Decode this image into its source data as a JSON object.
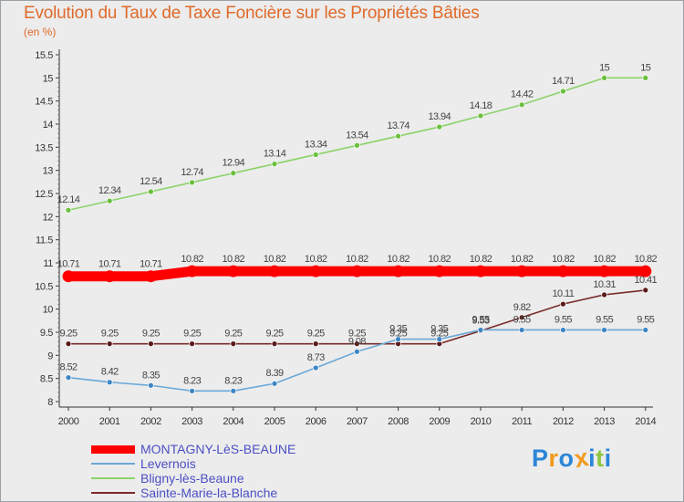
{
  "title": "Evolution du Taux de Taxe Foncière sur les Propriétés Bâties",
  "unit_label": "(en %)",
  "logo": {
    "letters": [
      "P",
      "r",
      "o",
      "x",
      "i",
      "t",
      "i"
    ],
    "colors": [
      "#2b86d9",
      "#f29a1e",
      "#2b86d9",
      "#f29a1e",
      "#2b86d9",
      "#8cc63f",
      "#2b86d9"
    ]
  },
  "chart_data": {
    "type": "line",
    "title": "Evolution du Taux de Taxe Foncière sur les Propriétés Bâties",
    "ylabel": "(en %)",
    "xlabel": "",
    "ylim": [
      8,
      15.5
    ],
    "yticks": [
      "8",
      "8.5",
      "9",
      "9.5",
      "10",
      "10.5",
      "11",
      "11.5",
      "12",
      "12.5",
      "13",
      "13.5",
      "14",
      "14.5",
      "15",
      "15.5"
    ],
    "categories": [
      "2000",
      "2001",
      "2002",
      "2003",
      "2004",
      "2005",
      "2006",
      "2007",
      "2008",
      "2009",
      "2010",
      "2011",
      "2012",
      "2013",
      "2014"
    ],
    "grid": false,
    "series": [
      {
        "name": "Bligny-lès-Beaune",
        "color": "#8cd26a",
        "marker": "#6abf3c",
        "values": [
          12.14,
          12.34,
          12.54,
          12.74,
          12.94,
          13.14,
          13.34,
          13.54,
          13.74,
          13.94,
          14.18,
          14.42,
          14.71,
          15,
          15
        ],
        "labels": [
          "12.14",
          "12.34",
          "12.54",
          "12.74",
          "12.94",
          "13.14",
          "13.34",
          "13.54",
          "13.74",
          "13.94",
          "14.18",
          "14.42",
          "14.71",
          "15",
          "15"
        ]
      },
      {
        "name": "MONTAGNY-LèS-BEAUNE",
        "color": "#ff0000",
        "marker": "#ff0000",
        "values": [
          10.71,
          10.71,
          10.71,
          10.82,
          10.82,
          10.82,
          10.82,
          10.82,
          10.82,
          10.82,
          10.82,
          10.82,
          10.82,
          10.82,
          10.82
        ],
        "labels": [
          "10.71",
          "10.71",
          "10.71",
          "10.82",
          "10.82",
          "10.82",
          "10.82",
          "10.82",
          "10.82",
          "10.82",
          "10.82",
          "10.82",
          "10.82",
          "10.82",
          "10.82"
        ]
      },
      {
        "name": "Sainte-Marie-la-Blanche",
        "color": "#7a2b2b",
        "marker": "#5a1a1a",
        "values": [
          9.25,
          9.25,
          9.25,
          9.25,
          9.25,
          9.25,
          9.25,
          9.25,
          9.25,
          9.25,
          9.53,
          9.82,
          10.11,
          10.31,
          10.41
        ],
        "labels": [
          "9.25",
          "9.25",
          "9.25",
          "9.25",
          "9.25",
          "9.25",
          "9.25",
          "9.25",
          "9.25",
          "9.25",
          "9.53",
          "9.82",
          "10.11",
          "10.31",
          "10.41"
        ]
      },
      {
        "name": "Levernois",
        "color": "#6aa8d8",
        "marker": "#3d86c6",
        "values": [
          8.52,
          8.42,
          8.35,
          8.23,
          8.23,
          8.39,
          8.73,
          9.08,
          9.35,
          9.35,
          9.55,
          9.55,
          9.55,
          9.55,
          9.55
        ],
        "labels": [
          "8.52",
          "8.42",
          "8.35",
          "8.23",
          "8.23",
          "8.39",
          "8.73",
          "9.08",
          "9.35",
          "9.35",
          "9.55",
          "9.55",
          "9.55",
          "9.55",
          "9.55"
        ]
      }
    ],
    "legend": [
      {
        "name": "MONTAGNY-LèS-BEAUNE",
        "color": "#ff0000"
      },
      {
        "name": "Levernois",
        "color": "#6aa8d8"
      },
      {
        "name": "Bligny-lès-Beaune",
        "color": "#8cd26a"
      },
      {
        "name": "Sainte-Marie-la-Blanche",
        "color": "#7a2b2b"
      }
    ]
  }
}
